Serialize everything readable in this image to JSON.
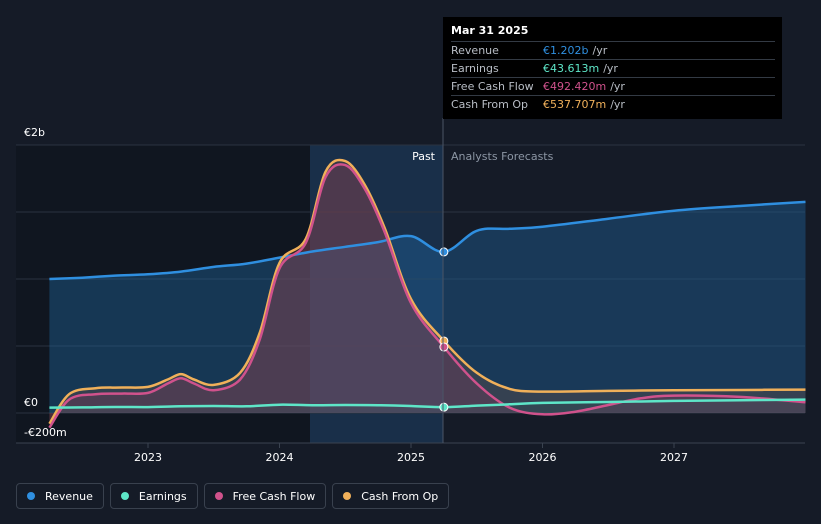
{
  "chart_data": {
    "type": "line",
    "y_ticks": [
      "€2b",
      "€0",
      "-€200m"
    ],
    "x_ticks": [
      "2023",
      "2024",
      "2025",
      "2026",
      "2027"
    ],
    "ylim": [
      -200,
      2000
    ],
    "divider_label_past": "Past",
    "divider_label_forecast": "Analysts Forecasts",
    "series": [
      {
        "name": "Revenue",
        "color": "#2f8fe0",
        "x": [
          2022.25,
          2022.5,
          2022.75,
          2023.0,
          2023.25,
          2023.5,
          2023.75,
          2024.0,
          2024.25,
          2024.5,
          2024.75,
          2025.0,
          2025.25,
          2025.5,
          2025.75,
          2026.0,
          2026.5,
          2027.0,
          2027.5,
          2028.0
        ],
        "y": [
          1000,
          1010,
          1025,
          1035,
          1055,
          1090,
          1115,
          1160,
          1205,
          1240,
          1275,
          1320,
          1202,
          1360,
          1375,
          1390,
          1450,
          1510,
          1545,
          1575
        ]
      },
      {
        "name": "Earnings",
        "color": "#5ee6c8",
        "x": [
          2022.25,
          2022.5,
          2022.75,
          2023.0,
          2023.25,
          2023.5,
          2023.75,
          2024.0,
          2024.25,
          2024.5,
          2024.75,
          2025.0,
          2025.25,
          2025.5,
          2025.75,
          2026.0,
          2026.5,
          2027.0,
          2027.5,
          2028.0
        ],
        "y": [
          40,
          42,
          45,
          44,
          50,
          52,
          50,
          62,
          58,
          60,
          58,
          52,
          43.6,
          55,
          65,
          75,
          82,
          90,
          95,
          100
        ]
      },
      {
        "name": "Free Cash Flow",
        "color": "#d0528c",
        "x": [
          2022.25,
          2022.4,
          2022.6,
          2022.8,
          2023.0,
          2023.15,
          2023.25,
          2023.35,
          2023.5,
          2023.7,
          2023.85,
          2024.0,
          2024.2,
          2024.35,
          2024.5,
          2024.65,
          2024.8,
          2025.0,
          2025.25,
          2025.5,
          2025.75,
          2026.0,
          2026.25,
          2026.5,
          2026.75,
          2027.0,
          2027.5,
          2028.0
        ],
        "y": [
          -110,
          100,
          140,
          145,
          150,
          220,
          260,
          220,
          170,
          250,
          550,
          1080,
          1270,
          1760,
          1850,
          1670,
          1350,
          820,
          492.4,
          220,
          40,
          -10,
          10,
          60,
          110,
          130,
          120,
          80
        ]
      },
      {
        "name": "Cash From Op",
        "color": "#f0b05a",
        "x": [
          2022.25,
          2022.4,
          2022.6,
          2022.8,
          2023.0,
          2023.15,
          2023.25,
          2023.35,
          2023.5,
          2023.7,
          2023.85,
          2024.0,
          2024.2,
          2024.35,
          2024.5,
          2024.65,
          2024.8,
          2025.0,
          2025.25,
          2025.5,
          2025.75,
          2026.0,
          2026.5,
          2027.0,
          2027.5,
          2028.0
        ],
        "y": [
          -80,
          140,
          185,
          190,
          195,
          250,
          290,
          250,
          210,
          300,
          600,
          1120,
          1300,
          1800,
          1880,
          1700,
          1380,
          850,
          537.7,
          300,
          180,
          160,
          165,
          170,
          172,
          175
        ]
      }
    ]
  },
  "tooltip": {
    "date": "Mar 31 2025",
    "rows": [
      {
        "name": "Revenue",
        "value": "€1.202b",
        "unit": "/yr",
        "color": "#2f8fe0"
      },
      {
        "name": "Earnings",
        "value": "€43.613m",
        "unit": "/yr",
        "color": "#5ee6c8"
      },
      {
        "name": "Free Cash Flow",
        "value": "€492.420m",
        "unit": "/yr",
        "color": "#d0528c"
      },
      {
        "name": "Cash From Op",
        "value": "€537.707m",
        "unit": "/yr",
        "color": "#f0b05a"
      }
    ]
  },
  "legend": [
    {
      "label": "Revenue",
      "color": "#2f8fe0"
    },
    {
      "label": "Earnings",
      "color": "#5ee6c8"
    },
    {
      "label": "Free Cash Flow",
      "color": "#d0528c"
    },
    {
      "label": "Cash From Op",
      "color": "#f0b05a"
    }
  ]
}
